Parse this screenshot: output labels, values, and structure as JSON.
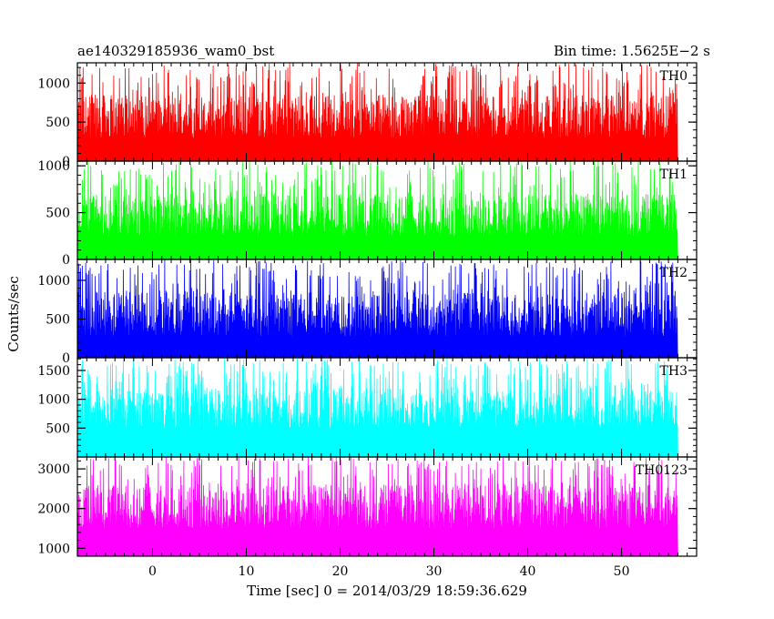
{
  "chart_data": {
    "type": "line",
    "title_left": "ae140329185936_wam0_bst",
    "title_right": "Bin time: 1.5625E−2 s",
    "xlabel": "Time [sec] 0 = 2014/03/29 18:59:36.629",
    "ylabel": "Counts/sec",
    "xlim": [
      -8,
      58
    ],
    "xticks": [
      0,
      10,
      20,
      30,
      40,
      50
    ],
    "data_xrange": [
      -8,
      56
    ],
    "grid": false,
    "panels": [
      {
        "name": "TH0",
        "color": "#ff0000",
        "ylim": [
          0,
          1260
        ],
        "yticks": [
          0,
          500,
          1000
        ],
        "baseline": 0,
        "low": 20,
        "typ_lo": 300,
        "typ_hi": 850,
        "max": 1260
      },
      {
        "name": "TH1",
        "color": "#00ff00",
        "ylim": [
          0,
          1050
        ],
        "yticks": [
          0,
          500,
          1000
        ],
        "baseline": 0,
        "low": 20,
        "typ_lo": 250,
        "typ_hi": 700,
        "max": 1050
      },
      {
        "name": "TH2",
        "color": "#0000ff",
        "ylim": [
          0,
          1270
        ],
        "yticks": [
          0,
          500,
          1000
        ],
        "baseline": 0,
        "low": 20,
        "typ_lo": 280,
        "typ_hi": 850,
        "max": 1270
      },
      {
        "name": "TH3",
        "color": "#00ffff",
        "ylim": [
          0,
          1720
        ],
        "yticks": [
          500,
          1000,
          1500
        ],
        "baseline": 0,
        "low": 200,
        "typ_lo": 500,
        "typ_hi": 1200,
        "max": 1720
      },
      {
        "name": "TH0123",
        "color": "#ff00ff",
        "ylim": [
          800,
          3300
        ],
        "yticks": [
          1000,
          2000,
          3000
        ],
        "baseline": 800,
        "low": 900,
        "typ_lo": 1500,
        "typ_hi": 2600,
        "max": 3300
      }
    ]
  }
}
